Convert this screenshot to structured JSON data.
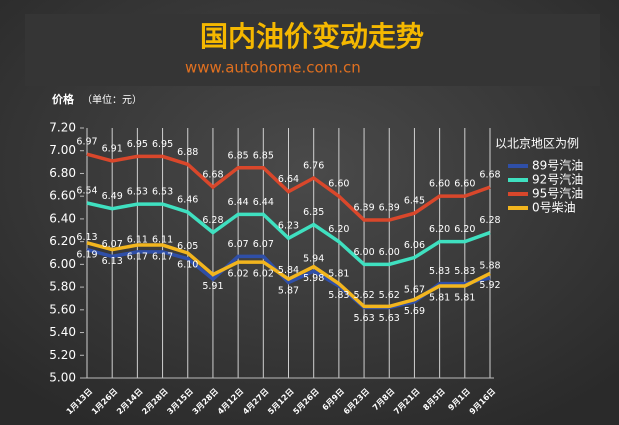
{
  "chart_data": {
    "type": "line",
    "title": "国内油价变动走势",
    "subtitle": "www.autohome.com.cn",
    "y_label": "价格",
    "y_unit": "（单位：元）",
    "legend_title": "以北京地区为例",
    "categories": [
      "1月13日",
      "1月26日",
      "2月14日",
      "2月28日",
      "3月15日",
      "3月28日",
      "4月12日",
      "4月27日",
      "5月12日",
      "5月26日",
      "6月9日",
      "6月23日",
      "7月8日",
      "7月21日",
      "8月5日",
      "9月1日",
      "9月16日"
    ],
    "series": [
      {
        "name": "89号汽油",
        "color": "#2f4fa8",
        "values": [
          6.13,
          6.07,
          6.11,
          6.11,
          6.05,
          5.87,
          6.07,
          6.07,
          5.84,
          5.94,
          5.81,
          5.62,
          5.62,
          5.67,
          5.83,
          5.83,
          5.88
        ],
        "value_labels": [
          "6.13",
          "6.07",
          "6.11",
          "6.11",
          "6.05",
          null,
          "6.07",
          "6.07",
          "5.84",
          "5.94",
          "5.81",
          "5.62",
          "5.62",
          "5.67",
          "5.83",
          "5.83",
          "5.88"
        ]
      },
      {
        "name": "92号汽油",
        "color": "#3fe0c0",
        "values": [
          6.54,
          6.49,
          6.53,
          6.53,
          6.46,
          6.28,
          6.44,
          6.44,
          6.23,
          6.35,
          6.2,
          6,
          6,
          6.06,
          6.2,
          6.2,
          6.28
        ],
        "value_labels": [
          "6.54",
          "6.49",
          "6.53",
          "6.53",
          "6.46",
          "6.28",
          "6.44",
          "6.44",
          "6.23",
          "6.35",
          "6.20",
          "6.00",
          "6.00",
          "6.06",
          "6.20",
          "6.20",
          "6.28"
        ]
      },
      {
        "name": "95号汽油",
        "color": "#d9472b",
        "values": [
          6.97,
          6.91,
          6.95,
          6.95,
          6.88,
          6.68,
          6.85,
          6.85,
          6.64,
          6.76,
          6.6,
          6.39,
          6.39,
          6.45,
          6.6,
          6.6,
          6.68
        ],
        "value_labels": [
          "6.97",
          "6.91",
          "6.95",
          "6.95",
          "6.88",
          "6.68",
          "6.85",
          "6.85",
          "6.64",
          "6.76",
          "6.60",
          "6.39",
          "6.39",
          "6.45",
          "6.60",
          "6.60",
          "6.68"
        ]
      },
      {
        "name": "0号柴油",
        "color": "#f2b51e",
        "values": [
          6.19,
          6.13,
          6.17,
          6.17,
          6.1,
          5.91,
          6.02,
          6.02,
          5.87,
          5.98,
          5.83,
          5.63,
          5.63,
          5.69,
          5.81,
          5.81,
          5.92
        ],
        "value_labels": [
          "6.19",
          "6.13",
          "6.17",
          "6.17",
          "6.10",
          "5.91",
          "6.02",
          "6.02",
          "5.87",
          "5.98",
          "5.83",
          "5.63",
          "5.63",
          "5.69",
          "5.81",
          "5.81",
          "5.92"
        ]
      }
    ],
    "ylim": [
      5,
      7.2
    ],
    "yticks": [
      {
        "value": 5,
        "label": "5.00"
      },
      {
        "value": 5.2,
        "label": "5.20"
      },
      {
        "value": 5.4,
        "label": "5.40"
      },
      {
        "value": 5.6,
        "label": "5.60"
      },
      {
        "value": 5.8,
        "label": "5.80"
      },
      {
        "value": 6,
        "label": "6.00"
      },
      {
        "value": 6.2,
        "label": "6.20"
      },
      {
        "value": 6.4,
        "label": "6.40"
      },
      {
        "value": 6.6,
        "label": "6.60"
      },
      {
        "value": 6.8,
        "label": "6.80"
      },
      {
        "value": 7,
        "label": "7.00"
      },
      {
        "value": 7.2,
        "label": "7.20"
      }
    ],
    "grid": true
  }
}
